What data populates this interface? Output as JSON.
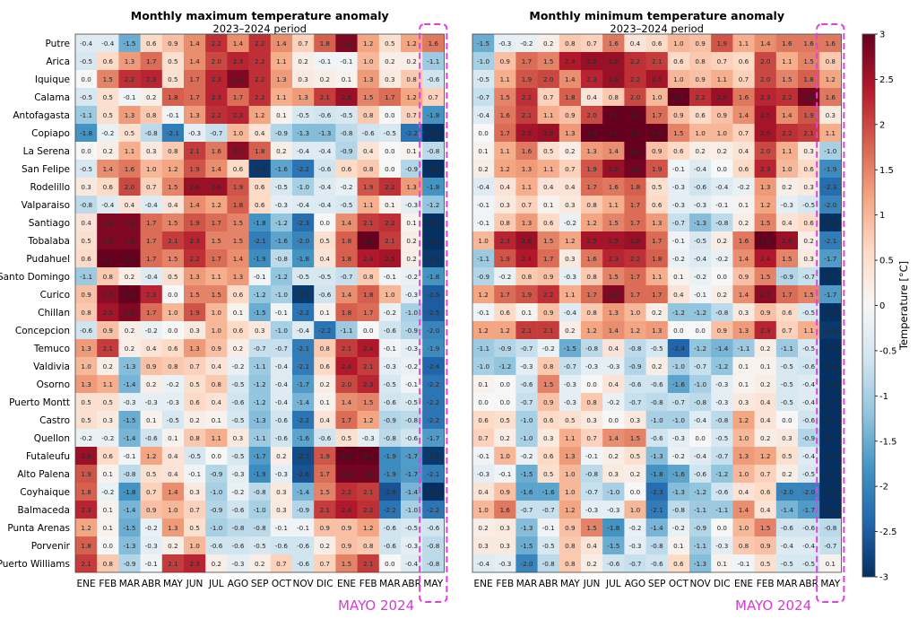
{
  "chart_data": [
    {
      "type": "heatmap",
      "title": "Monthly maximum temperature anomaly",
      "subtitle": "2023–2024 period",
      "rows": [
        "Putre",
        "Arica",
        "Iquique",
        "Calama",
        "Antofagasta",
        "Copiapo",
        "La Serena",
        "San Felipe",
        "Rodelillo",
        "Valparaiso",
        "Santiago",
        "Tobalaba",
        "Pudahuel",
        "Santo Domingo",
        "Curico",
        "Chillan",
        "Concepcion",
        "Temuco",
        "Valdivia",
        "Osorno",
        "Puerto Montt",
        "Castro",
        "Quellon",
        "Futaleufu",
        "Alto Palena",
        "Coyhaique",
        "Balmaceda",
        "Punta Arenas",
        "Porvenir",
        "Puerto Williams"
      ],
      "columns": [
        "ENE",
        "FEB",
        "MAR",
        "ABR",
        "MAY",
        "JUN",
        "JUL",
        "AGO",
        "SEP",
        "OCT",
        "NOV",
        "DIC",
        "ENE",
        "FEB",
        "MAR",
        "ABR",
        "MAY"
      ],
      "values": [
        [
          -0.4,
          -0.4,
          -1.5,
          0.6,
          0.9,
          1.4,
          2.2,
          1.4,
          2.2,
          1.4,
          0.7,
          1.8,
          2.8,
          1.2,
          0.5,
          1.2,
          1.6
        ],
        [
          -0.5,
          0.6,
          1.3,
          1.7,
          0.5,
          1.4,
          2.0,
          2.3,
          2.2,
          1.1,
          0.2,
          -0.1,
          -0.1,
          1.0,
          0.2,
          0.2,
          -1.1
        ],
        [
          0.0,
          1.5,
          2.2,
          2.3,
          0.5,
          1.7,
          2.3,
          2.8,
          2.2,
          1.3,
          0.3,
          0.2,
          0.1,
          1.3,
          0.3,
          0.8,
          -0.6
        ],
        [
          -0.5,
          0.5,
          -0.1,
          0.2,
          1.8,
          1.7,
          2.3,
          1.7,
          2.2,
          1.1,
          1.3,
          2.1,
          2.6,
          1.5,
          1.7,
          1.2,
          0.7
        ],
        [
          -1.1,
          0.5,
          1.3,
          0.8,
          -0.1,
          1.3,
          2.2,
          2.3,
          1.2,
          0.1,
          -0.5,
          -0.6,
          -0.5,
          0.8,
          0.0,
          0.7,
          -1.8
        ],
        [
          -1.8,
          -0.2,
          0.5,
          -0.8,
          -2.1,
          -0.3,
          -0.7,
          1.0,
          0.4,
          -0.9,
          -1.3,
          -1.3,
          -0.8,
          -0.6,
          -0.5,
          -2.2,
          -3.0
        ],
        [
          0.0,
          0.2,
          1.1,
          0.3,
          0.8,
          2.1,
          1.6,
          2.7,
          1.8,
          0.2,
          -0.4,
          -0.4,
          -0.9,
          0.4,
          0.0,
          0.1,
          -0.8
        ],
        [
          -0.5,
          1.4,
          1.6,
          1.0,
          1.2,
          1.9,
          1.4,
          0.6,
          -2.9,
          -1.6,
          -2.2,
          -0.6,
          0.6,
          0.8,
          0.0,
          -0.9,
          -3.0
        ],
        [
          0.3,
          0.6,
          2.0,
          0.7,
          1.5,
          2.6,
          2.6,
          1.9,
          0.6,
          -0.5,
          -1.0,
          -0.4,
          -0.2,
          1.9,
          2.2,
          1.3,
          -1.8
        ],
        [
          -0.8,
          -0.4,
          0.4,
          -0.4,
          0.4,
          1.4,
          1.2,
          1.8,
          0.6,
          -0.3,
          -0.4,
          -0.4,
          -0.5,
          1.1,
          0.1,
          -0.3,
          -1.2
        ],
        [
          0.4,
          2.8,
          2.8,
          1.7,
          1.5,
          1.9,
          1.7,
          1.5,
          -1.8,
          -1.2,
          -2.3,
          -0.0,
          1.4,
          2.1,
          2.2,
          0.1,
          -3.0
        ],
        [
          0.5,
          2.8,
          2.8,
          1.7,
          2.1,
          2.3,
          1.5,
          1.5,
          -2.1,
          -1.6,
          -2.0,
          0.5,
          1.8,
          3.1,
          2.1,
          0.2,
          -3.0
        ],
        [
          0.6,
          3.1,
          3.1,
          1.7,
          1.5,
          2.2,
          1.7,
          1.4,
          -1.9,
          -0.8,
          -1.8,
          0.4,
          1.8,
          2.4,
          2.5,
          0.2,
          -2.9
        ],
        [
          -1.1,
          0.8,
          0.2,
          -0.4,
          0.5,
          1.3,
          1.1,
          1.3,
          -0.1,
          -1.2,
          -0.5,
          -0.5,
          -0.7,
          0.8,
          -0.1,
          -0.2,
          -1.8
        ],
        [
          0.9,
          2.7,
          3.0,
          2.3,
          0.0,
          1.5,
          1.5,
          0.6,
          -1.2,
          -1.0,
          -2.9,
          -0.6,
          1.4,
          1.8,
          1.0,
          -0.3,
          -2.5
        ],
        [
          0.8,
          2.5,
          2.8,
          1.7,
          1.0,
          1.9,
          1.0,
          0.1,
          -1.5,
          -0.1,
          -2.2,
          0.1,
          1.8,
          1.7,
          -0.2,
          -1.0,
          -2.5
        ],
        [
          -0.6,
          0.9,
          0.2,
          -0.2,
          0.0,
          0.3,
          1.0,
          0.6,
          0.3,
          -1.0,
          -0.4,
          -2.2,
          -1.1,
          -0.0,
          -0.6,
          -0.9,
          -2.0
        ],
        [
          1.3,
          2.1,
          0.2,
          0.4,
          0.6,
          1.3,
          0.9,
          0.2,
          -0.7,
          -0.7,
          -2.1,
          0.8,
          2.1,
          2.4,
          -0.1,
          -0.3,
          -1.9
        ],
        [
          1.0,
          0.2,
          -1.3,
          0.9,
          0.8,
          0.7,
          0.4,
          -0.2,
          -1.1,
          -0.4,
          -2.1,
          0.6,
          2.4,
          2.1,
          -0.3,
          -0.2,
          -2.4
        ],
        [
          1.3,
          1.1,
          -1.4,
          0.2,
          -0.2,
          0.5,
          0.8,
          -0.5,
          -1.2,
          -0.4,
          -1.7,
          0.2,
          2.0,
          2.3,
          -0.5,
          -0.1,
          -2.2
        ],
        [
          0.5,
          0.5,
          -0.3,
          -0.3,
          -0.3,
          0.6,
          0.4,
          -0.6,
          -1.2,
          -0.4,
          -1.4,
          0.1,
          1.4,
          1.5,
          -0.6,
          -0.5,
          -2.2
        ],
        [
          0.5,
          0.3,
          -1.5,
          0.1,
          -0.5,
          0.2,
          0.1,
          -0.5,
          -1.3,
          -0.6,
          -2.2,
          0.4,
          1.7,
          1.2,
          -0.9,
          -0.8,
          -2.2
        ],
        [
          -0.2,
          -0.2,
          -1.4,
          -0.6,
          0.1,
          0.8,
          1.1,
          0.3,
          -1.1,
          -0.6,
          -1.6,
          -0.6,
          0.5,
          -0.3,
          -0.8,
          -0.6,
          -1.7
        ],
        [
          2.6,
          0.6,
          -0.1,
          1.2,
          0.4,
          -0.5,
          0.0,
          -0.5,
          -1.7,
          0.2,
          -2.7,
          1.9,
          3.3,
          3.0,
          -1.9,
          -1.7,
          -2.9
        ],
        [
          1.9,
          0.1,
          -0.8,
          0.5,
          0.4,
          -0.1,
          -0.9,
          -0.3,
          -1.9,
          -0.3,
          -2.6,
          1.7,
          2.9,
          2.9,
          -1.9,
          -1.7,
          -2.1
        ],
        [
          1.8,
          -0.2,
          -1.8,
          0.7,
          1.4,
          0.3,
          -1.0,
          -0.2,
          -0.8,
          0.3,
          -1.4,
          1.5,
          2.2,
          2.1,
          -2.6,
          -1.4,
          -3.4
        ],
        [
          2.3,
          0.1,
          -1.4,
          0.9,
          1.0,
          0.7,
          -0.9,
          -0.6,
          -1.0,
          0.3,
          -0.9,
          2.1,
          2.4,
          2.2,
          -2.2,
          -1.0,
          -2.2
        ],
        [
          1.2,
          0.1,
          -1.5,
          -0.2,
          1.3,
          0.5,
          -1.0,
          -0.8,
          -0.8,
          -0.1,
          -0.1,
          0.9,
          0.9,
          1.2,
          -0.6,
          -0.5,
          -0.6
        ],
        [
          1.8,
          0.0,
          -1.3,
          -0.3,
          0.2,
          1.0,
          -0.6,
          -0.6,
          -0.5,
          -0.6,
          -0.6,
          0.2,
          0.9,
          0.8,
          -0.6,
          -0.3,
          -0.8
        ],
        [
          2.1,
          0.8,
          -0.9,
          -0.1,
          2.1,
          2.3,
          0.2,
          -0.3,
          0.2,
          0.7,
          -0.6,
          0.7,
          1.5,
          2.1,
          -0.0,
          -0.4,
          -0.8
        ]
      ],
      "highlight_column_label": "MAYO 2024"
    },
    {
      "type": "heatmap",
      "title": "Monthly minimum temperature anomaly",
      "subtitle": "2023–2024 period",
      "rows": [
        "Putre",
        "Arica",
        "Iquique",
        "Calama",
        "Antofagasta",
        "Copiapo",
        "La Serena",
        "San Felipe",
        "Rodelillo",
        "Valparaiso",
        "Santiago",
        "Tobalaba",
        "Pudahuel",
        "Santo Domingo",
        "Curico",
        "Chillan",
        "Concepcion",
        "Temuco",
        "Valdivia",
        "Osorno",
        "Puerto Montt",
        "Castro",
        "Quellon",
        "Futaleufu",
        "Alto Palena",
        "Coyhaique",
        "Balmaceda",
        "Punta Arenas",
        "Porvenir",
        "Puerto Williams"
      ],
      "columns": [
        "ENE",
        "FEB",
        "MAR",
        "ABR",
        "MAY",
        "JUN",
        "JUL",
        "AGO",
        "SEP",
        "OCT",
        "NOV",
        "DIC",
        "ENE",
        "FEB",
        "MAR",
        "ABR",
        "MAY"
      ],
      "values": [
        [
          -1.5,
          -0.3,
          -0.2,
          0.2,
          0.8,
          0.7,
          1.6,
          0.4,
          0.6,
          1.0,
          0.9,
          1.9,
          1.1,
          1.4,
          1.6,
          1.6,
          1.6
        ],
        [
          -1.0,
          0.9,
          1.7,
          1.5,
          2.4,
          2.6,
          2.6,
          2.2,
          2.1,
          0.6,
          0.8,
          0.7,
          0.6,
          2.0,
          1.1,
          1.5,
          0.8
        ],
        [
          -0.5,
          1.1,
          1.9,
          2.0,
          1.4,
          2.3,
          2.6,
          2.2,
          2.5,
          1.0,
          0.9,
          1.1,
          0.7,
          2.0,
          1.5,
          1.8,
          1.2
        ],
        [
          -0.7,
          1.5,
          2.2,
          0.7,
          1.8,
          0.4,
          0.8,
          2.0,
          1.0,
          3.4,
          2.2,
          2.6,
          1.6,
          2.3,
          2.2,
          2.9,
          1.6
        ],
        [
          -0.4,
          1.6,
          2.1,
          1.1,
          0.9,
          2.0,
          3.1,
          3.0,
          1.7,
          0.9,
          0.6,
          0.9,
          1.4,
          2.5,
          1.4,
          1.9,
          0.3
        ],
        [
          -0.0,
          1.7,
          2.5,
          2.6,
          1.3,
          3.0,
          3.1,
          3.0,
          3.0,
          1.5,
          1.0,
          1.0,
          0.7,
          2.5,
          2.2,
          2.1,
          1.1
        ],
        [
          0.1,
          1.1,
          1.6,
          0.5,
          0.2,
          1.3,
          1.4,
          3.0,
          0.9,
          0.6,
          0.2,
          0.2,
          0.4,
          2.0,
          1.1,
          0.3,
          -1.0
        ],
        [
          0.2,
          1.2,
          1.3,
          1.1,
          0.7,
          1.9,
          2.6,
          2.9,
          1.9,
          -0.1,
          -0.4,
          0.0,
          0.6,
          2.3,
          1.0,
          0.6,
          -1.9
        ],
        [
          -0.4,
          0.4,
          1.1,
          0.4,
          0.4,
          1.7,
          1.6,
          1.8,
          0.5,
          -0.3,
          -0.6,
          -0.4,
          -0.2,
          1.3,
          0.2,
          0.3,
          -2.3
        ],
        [
          -0.1,
          0.3,
          0.7,
          0.1,
          0.3,
          0.8,
          1.1,
          1.7,
          0.6,
          -0.3,
          -0.3,
          -0.1,
          0.1,
          1.2,
          -0.3,
          -0.5,
          -2.0
        ],
        [
          -0.1,
          0.8,
          1.3,
          0.6,
          -0.2,
          1.2,
          1.5,
          1.7,
          1.3,
          -0.7,
          -1.3,
          -0.8,
          0.2,
          1.5,
          0.4,
          0.6,
          -3.1
        ],
        [
          1.0,
          2.3,
          2.6,
          1.5,
          1.2,
          2.5,
          2.5,
          2.6,
          1.7,
          -0.1,
          -0.5,
          0.2,
          1.6,
          3.0,
          2.6,
          0.2,
          -2.1
        ],
        [
          -1.1,
          1.9,
          2.4,
          1.7,
          0.3,
          1.6,
          2.3,
          2.2,
          1.8,
          -0.2,
          -0.4,
          -0.2,
          1.4,
          2.4,
          1.5,
          0.3,
          -1.7
        ],
        [
          -0.9,
          -0.2,
          0.8,
          0.9,
          -0.3,
          0.8,
          1.5,
          1.7,
          1.1,
          0.1,
          -0.2,
          0.0,
          0.9,
          1.5,
          -0.9,
          -0.7,
          -3.4
        ],
        [
          1.2,
          1.7,
          1.9,
          2.2,
          1.1,
          1.7,
          2.8,
          1.7,
          1.7,
          0.4,
          -0.1,
          0.2,
          1.4,
          2.7,
          1.7,
          1.5,
          -1.7
        ],
        [
          -0.1,
          0.6,
          0.1,
          0.9,
          -0.4,
          0.8,
          1.3,
          1.0,
          0.2,
          -1.2,
          -1.2,
          -0.8,
          0.3,
          0.9,
          0.6,
          -0.5,
          -4.5
        ],
        [
          1.2,
          1.2,
          2.1,
          2.1,
          0.2,
          1.2,
          1.4,
          1.2,
          1.3,
          -0.0,
          -0.0,
          0.9,
          1.3,
          2.3,
          0.7,
          1.1,
          -2.9
        ],
        [
          -1.1,
          -0.9,
          -0.7,
          -0.2,
          -1.5,
          -0.8,
          0.4,
          -0.8,
          -0.5,
          -2.4,
          -1.2,
          -1.4,
          -1.1,
          0.2,
          -1.1,
          -0.5,
          -4.7
        ],
        [
          -1.0,
          -1.2,
          -0.3,
          0.8,
          -0.7,
          -0.3,
          -0.3,
          -0.9,
          0.2,
          -1.0,
          -0.7,
          -1.2,
          0.1,
          0.1,
          -0.5,
          -0.6,
          -4.5
        ],
        [
          0.1,
          -0.0,
          -0.6,
          1.5,
          -0.3,
          -0.0,
          0.4,
          -0.6,
          -0.6,
          -1.6,
          -1.0,
          -0.3,
          0.1,
          0.2,
          -0.5,
          -0.4,
          -4.8
        ],
        [
          -0.0,
          -0.0,
          -0.7,
          0.9,
          -0.3,
          0.8,
          -0.2,
          -0.7,
          -0.8,
          -0.7,
          -0.8,
          -0.3,
          0.3,
          0.4,
          -0.5,
          -0.4,
          -4.7
        ],
        [
          0.6,
          0.5,
          -1.0,
          0.6,
          0.5,
          0.3,
          0.0,
          0.3,
          -1.0,
          -1.0,
          -0.4,
          -0.8,
          1.2,
          0.4,
          0.0,
          -0.6,
          -3.4
        ],
        [
          0.7,
          0.2,
          -1.0,
          0.3,
          1.1,
          0.7,
          1.4,
          1.5,
          -0.6,
          -0.3,
          0.0,
          -0.5,
          1.0,
          0.2,
          0.3,
          -0.9,
          -3.4
        ],
        [
          -0.1,
          1.0,
          -0.2,
          0.6,
          1.3,
          -0.1,
          0.2,
          0.5,
          -1.3,
          -0.2,
          -0.4,
          -0.7,
          1.3,
          1.2,
          0.5,
          -0.4,
          -3.4
        ],
        [
          -0.3,
          -0.1,
          -1.5,
          0.5,
          1.0,
          -0.8,
          0.3,
          0.2,
          -1.8,
          -1.6,
          -0.6,
          -1.2,
          1.0,
          0.7,
          0.2,
          -0.5,
          -3.7
        ],
        [
          0.4,
          0.9,
          -1.6,
          -1.6,
          1.0,
          -0.7,
          -1.0,
          0.0,
          -2.3,
          -1.3,
          -1.2,
          -0.6,
          0.4,
          0.6,
          -2.0,
          -2.0,
          -6.0
        ],
        [
          1.0,
          1.6,
          -0.7,
          -0.7,
          1.2,
          -0.3,
          -0.3,
          1.0,
          -2.1,
          -0.8,
          -1.1,
          -1.1,
          1.4,
          0.4,
          -1.4,
          -1.7,
          -6.2
        ],
        [
          0.2,
          0.3,
          -1.3,
          -0.1,
          0.9,
          1.5,
          -1.8,
          -0.2,
          -1.4,
          -0.2,
          -0.9,
          -0.0,
          1.0,
          1.5,
          -0.6,
          -0.6,
          -0.8
        ],
        [
          0.3,
          0.3,
          -1.5,
          -0.5,
          0.8,
          0.4,
          -1.5,
          -0.3,
          -0.8,
          0.1,
          -1.1,
          -0.3,
          0.8,
          0.9,
          -0.4,
          -0.4,
          -0.7
        ],
        [
          -0.4,
          -0.3,
          -2.0,
          -0.8,
          0.8,
          0.2,
          -0.6,
          -0.7,
          -0.6,
          0.6,
          -1.3,
          0.1,
          -0.1,
          0.5,
          -0.5,
          -0.5,
          0.1
        ]
      ],
      "highlight_column_label": "MAYO 2024"
    }
  ],
  "colorbar": {
    "label": "Temperature [°C]",
    "min": -3,
    "max": 3,
    "ticks": [
      "3",
      "2.5",
      "2",
      "1.5",
      "1",
      "0.5",
      "0",
      "-0.5",
      "-1",
      "-1.5",
      "-2",
      "-2.5",
      "-3"
    ]
  },
  "colors": {
    "highlight_box": "#e040e0",
    "highlight_label": "#d63adb"
  }
}
